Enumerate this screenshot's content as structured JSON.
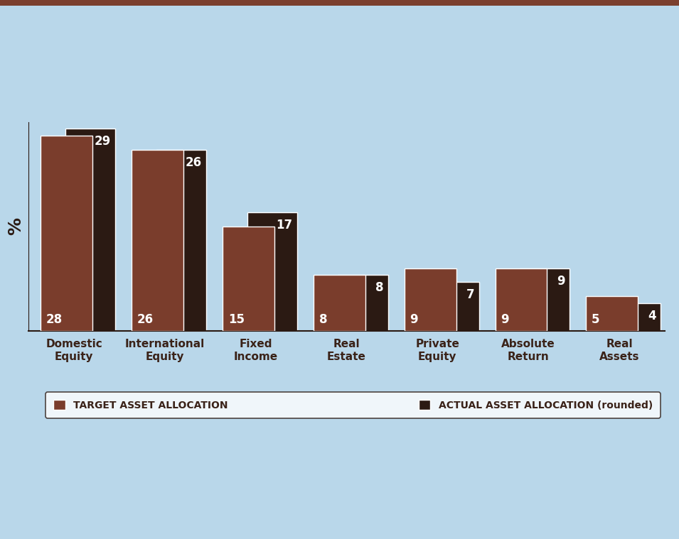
{
  "chart_data": {
    "type": "bar",
    "y_label": "%",
    "categories": [
      "Domestic\nEquity",
      "International\nEquity",
      "Fixed\nIncome",
      "Real\nEstate",
      "Private\nEquity",
      "Absolute\nReturn",
      "Real\nAssets"
    ],
    "series": [
      {
        "name": "TARGET ASSET ALLOCATION",
        "color": "#7a3d2c",
        "values": [
          28,
          26,
          15,
          8,
          9,
          9,
          5
        ]
      },
      {
        "name": "ACTUAL ASSET ALLOCATION (rounded)",
        "color": "#2b1a13",
        "values": [
          29,
          26,
          17,
          8,
          7,
          9,
          4
        ]
      }
    ],
    "ylim": [
      0,
      30
    ],
    "yticks": [],
    "tick_labels": "x",
    "data_labels": true,
    "legend": "lower center",
    "grid": false
  }
}
